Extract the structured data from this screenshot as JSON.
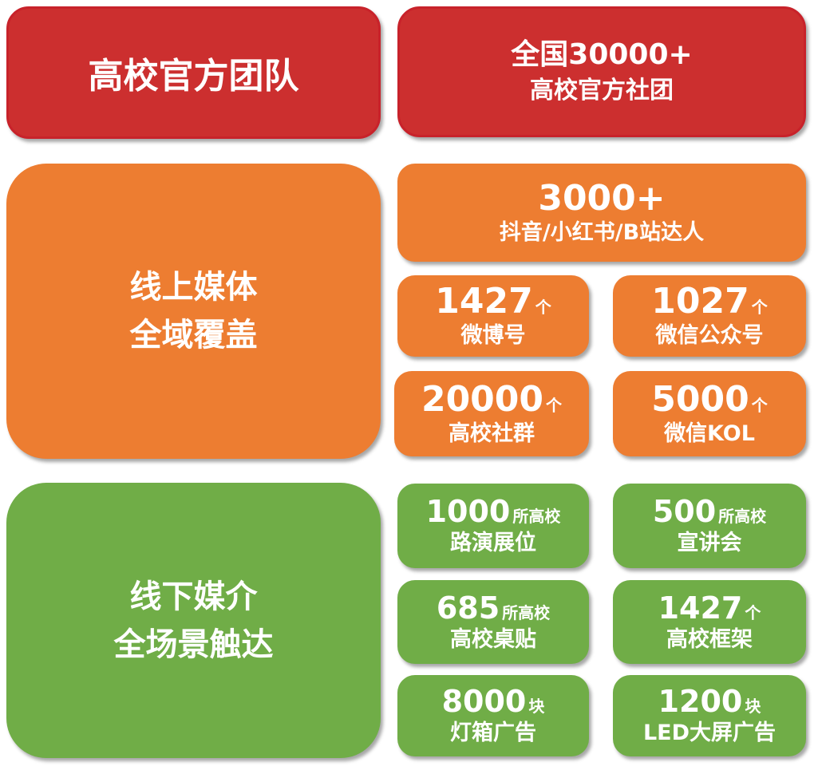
{
  "colors": {
    "red": "#cc2f2f",
    "orange": "#ed7d31",
    "green": "#70ad47"
  },
  "official": {
    "title": "高校官方团队",
    "stat_line1": "全国30000+",
    "stat_line2": "高校官方社团"
  },
  "online": {
    "title_line1": "线上媒体",
    "title_line2": "全域覆盖",
    "top": {
      "number": "3000+",
      "label": "抖音/小红书/B站达人"
    },
    "items": [
      {
        "number": "1427",
        "unit": "个",
        "label": "微博号"
      },
      {
        "number": "1027",
        "unit": "个",
        "label": "微信公众号"
      },
      {
        "number": "20000",
        "unit": "个",
        "label": "高校社群"
      },
      {
        "number": "5000",
        "unit": "个",
        "label": "微信KOL"
      }
    ]
  },
  "offline": {
    "title_line1": "线下媒介",
    "title_line2": "全场景触达",
    "items": [
      {
        "number": "1000",
        "unit": "所高校",
        "label": "路演展位"
      },
      {
        "number": "500",
        "unit": "所高校",
        "label": "宣讲会"
      },
      {
        "number": "685",
        "unit": "所高校",
        "label": "高校桌贴"
      },
      {
        "number": "1427",
        "unit": "个",
        "label": "高校框架"
      },
      {
        "number": "8000",
        "unit": "块",
        "label": "灯箱广告"
      },
      {
        "number": "1200",
        "unit": "块",
        "label": "LED大屏广告"
      }
    ]
  }
}
